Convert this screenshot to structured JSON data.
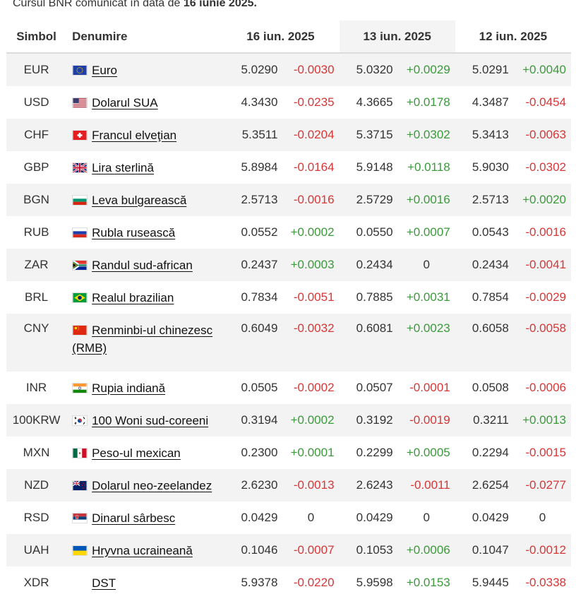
{
  "caption": {
    "prefix": "Cursul BNR comunicat în data de",
    "date": "16 iunie 2025."
  },
  "headers": {
    "symbol": "Simbol",
    "name": "Denumire",
    "d1": "16 iun. 2025",
    "d2": "13 iun. 2025",
    "d3": "12 iun. 2025"
  },
  "rows": [
    {
      "sym": "EUR",
      "flag": "eu-flag-icon",
      "name": "Euro",
      "v1": "5.0290",
      "c1": "-0.0030",
      "v2": "5.0320",
      "c2": "+0.0029",
      "v3": "5.0291",
      "c3": "+0.0040"
    },
    {
      "sym": "USD",
      "flag": "us-flag-icon",
      "name": "Dolarul SUA",
      "v1": "4.3430",
      "c1": "-0.0235",
      "v2": "4.3665",
      "c2": "+0.0178",
      "v3": "4.3487",
      "c3": "-0.0454"
    },
    {
      "sym": "CHF",
      "flag": "ch-flag-icon",
      "name": "Francul elveţian",
      "v1": "5.3511",
      "c1": "-0.0204",
      "v2": "5.3715",
      "c2": "+0.0302",
      "v3": "5.3413",
      "c3": "-0.0063"
    },
    {
      "sym": "GBP",
      "flag": "gb-flag-icon",
      "name": "Lira sterlină",
      "v1": "5.8984",
      "c1": "-0.0164",
      "v2": "5.9148",
      "c2": "+0.0118",
      "v3": "5.9030",
      "c3": "-0.0302"
    },
    {
      "sym": "BGN",
      "flag": "bg-flag-icon",
      "name": "Leva bulgarească",
      "v1": "2.5713",
      "c1": "-0.0016",
      "v2": "2.5729",
      "c2": "+0.0016",
      "v3": "2.5713",
      "c3": "+0.0020"
    },
    {
      "sym": "RUB",
      "flag": "ru-flag-icon",
      "name": "Rubla rusească",
      "v1": "0.0552",
      "c1": "+0.0002",
      "v2": "0.0550",
      "c2": "+0.0007",
      "v3": "0.0543",
      "c3": "-0.0016"
    },
    {
      "sym": "ZAR",
      "flag": "za-flag-icon",
      "name": "Randul sud-african",
      "v1": "0.2437",
      "c1": "+0.0003",
      "v2": "0.2434",
      "c2": "0",
      "v3": "0.2434",
      "c3": "-0.0041"
    },
    {
      "sym": "BRL",
      "flag": "br-flag-icon",
      "name": "Realul brazilian",
      "v1": "0.7834",
      "c1": "-0.0051",
      "v2": "0.7885",
      "c2": "+0.0031",
      "v3": "0.7854",
      "c3": "-0.0029"
    },
    {
      "sym": "CNY",
      "flag": "cn-flag-icon",
      "name": "Renminbi-ul chinezesc (RMB)",
      "v1": "0.6049",
      "c1": "-0.0032",
      "v2": "0.6081",
      "c2": "+0.0023",
      "v3": "0.6058",
      "c3": "-0.0058",
      "tall": true
    },
    {
      "sym": "INR",
      "flag": "in-flag-icon",
      "name": "Rupia indiană",
      "v1": "0.0505",
      "c1": "-0.0002",
      "v2": "0.0507",
      "c2": "-0.0001",
      "v3": "0.0508",
      "c3": "-0.0006"
    },
    {
      "sym": "100KRW",
      "flag": "kr-flag-icon",
      "name": "100 Woni sud-coreeni",
      "v1": "0.3194",
      "c1": "+0.0002",
      "v2": "0.3192",
      "c2": "-0.0019",
      "v3": "0.3211",
      "c3": "+0.0013"
    },
    {
      "sym": "MXN",
      "flag": "mx-flag-icon",
      "name": "Peso-ul mexican",
      "v1": "0.2300",
      "c1": "+0.0001",
      "v2": "0.2299",
      "c2": "+0.0005",
      "v3": "0.2294",
      "c3": "-0.0015"
    },
    {
      "sym": "NZD",
      "flag": "nz-flag-icon",
      "name": "Dolarul neo-zeelandez",
      "v1": "2.6230",
      "c1": "-0.0013",
      "v2": "2.6243",
      "c2": "-0.0011",
      "v3": "2.6254",
      "c3": "-0.0277"
    },
    {
      "sym": "RSD",
      "flag": "rs-flag-icon",
      "name": "Dinarul sârbesc",
      "v1": "0.0429",
      "c1": "0",
      "v2": "0.0429",
      "c2": "0",
      "v3": "0.0429",
      "c3": "0"
    },
    {
      "sym": "UAH",
      "flag": "ua-flag-icon",
      "name": "Hryvna ucraineană",
      "v1": "0.1046",
      "c1": "-0.0007",
      "v2": "0.1053",
      "c2": "+0.0006",
      "v3": "0.1047",
      "c3": "-0.0012"
    },
    {
      "sym": "XDR",
      "flag": "",
      "name": "DST",
      "v1": "5.9378",
      "c1": "-0.0220",
      "v2": "5.9598",
      "c2": "+0.0153",
      "v3": "5.9445",
      "c3": "-0.0338"
    }
  ],
  "colors": {
    "positive": "#3a9a3a",
    "negative": "#d63737",
    "row_alt": "#f3f3f3"
  }
}
